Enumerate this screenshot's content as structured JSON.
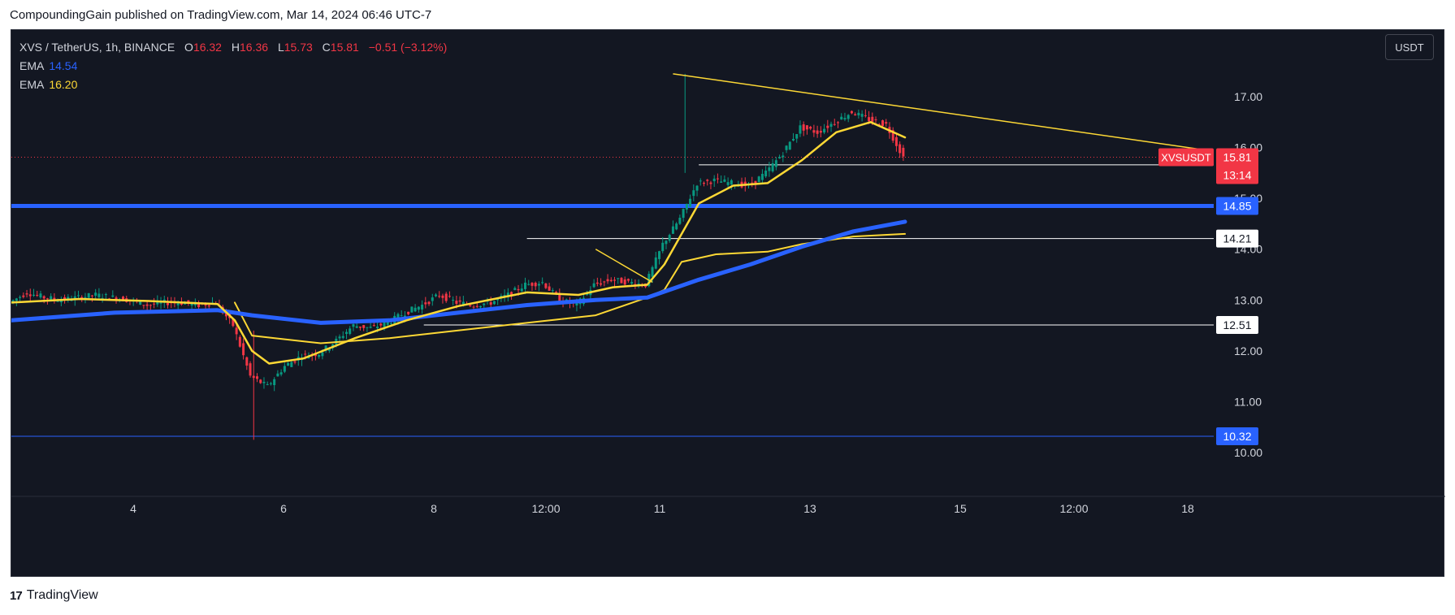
{
  "published_by": "CompoundingGain published on TradingView.com, Mar 14, 2024 06:46 UTC-7",
  "brand": "TradingView",
  "brand_mark": "17",
  "legend": {
    "symbol": "XVS / TetherUS, 1h, BINANCE",
    "o_label": "O",
    "o_val": "16.32",
    "h_label": "H",
    "h_val": "16.36",
    "l_label": "L",
    "l_val": "15.73",
    "c_label": "C",
    "c_val": "15.81",
    "change": "−0.51 (−3.12%)",
    "ema1_label": "EMA",
    "ema1_val": "14.54",
    "ema2_label": "EMA",
    "ema2_val": "16.20"
  },
  "unit_button": "USDT",
  "price_tag": {
    "symbol": "XVSUSDT",
    "price": "15.81",
    "countdown": "13:14"
  },
  "colors": {
    "background": "#131722",
    "bull": "#089981",
    "bear": "#f23645",
    "ema_fast": "#fdd835",
    "ema_slow": "#2962ff",
    "trendline": "#fdd835",
    "level_line": "#ffffff",
    "support_line": "#2962ff"
  },
  "chart_data": {
    "type": "candlestick",
    "symbol": "XVS / TetherUS",
    "timeframe": "1h",
    "exchange": "BINANCE",
    "x_ticks": [
      "4",
      "6",
      "8",
      "12:00",
      "11",
      "13",
      "15",
      "12:00",
      "18"
    ],
    "y_ticks": [
      "10.00",
      "11.00",
      "12.00",
      "13.00",
      "14.00",
      "15.00",
      "16.00",
      "17.00"
    ],
    "ylim": [
      9.0,
      17.8
    ],
    "horizontal_levels": [
      {
        "label": "15.66",
        "value": 15.66
      },
      {
        "label": "14.85",
        "value": 14.85
      },
      {
        "label": "14.21",
        "value": 14.21
      },
      {
        "label": "12.51",
        "value": 12.51
      },
      {
        "label": "10.32",
        "value": 10.32
      }
    ],
    "price_path": [
      [
        0,
        12.95
      ],
      [
        1,
        13.15
      ],
      [
        2,
        13.05
      ],
      [
        3,
        13.0
      ],
      [
        4,
        13.05
      ],
      [
        5,
        13.1
      ],
      [
        6,
        13.05
      ],
      [
        7,
        13.0
      ],
      [
        8,
        12.9
      ],
      [
        9,
        12.95
      ],
      [
        10,
        12.95
      ],
      [
        11,
        12.9
      ],
      [
        12,
        12.95
      ],
      [
        13,
        12.5
      ],
      [
        14,
        11.5
      ],
      [
        15,
        11.3
      ],
      [
        16,
        11.7
      ],
      [
        17,
        11.9
      ],
      [
        18,
        11.95
      ],
      [
        19,
        12.2
      ],
      [
        20,
        12.5
      ],
      [
        21,
        12.45
      ],
      [
        22,
        12.55
      ],
      [
        23,
        12.75
      ],
      [
        24,
        12.9
      ],
      [
        25,
        13.1
      ],
      [
        26,
        12.95
      ],
      [
        27,
        12.9
      ],
      [
        28,
        12.95
      ],
      [
        29,
        13.1
      ],
      [
        30,
        13.3
      ],
      [
        31,
        13.35
      ],
      [
        32,
        13.0
      ],
      [
        33,
        12.9
      ],
      [
        34,
        13.3
      ],
      [
        35,
        13.4
      ],
      [
        36,
        13.35
      ],
      [
        37,
        13.3
      ],
      [
        38,
        14.1
      ],
      [
        39,
        14.6
      ],
      [
        40,
        15.3
      ],
      [
        41,
        15.35
      ],
      [
        42,
        15.3
      ],
      [
        43,
        15.25
      ],
      [
        44,
        15.5
      ],
      [
        45,
        15.9
      ],
      [
        46,
        16.4
      ],
      [
        47,
        16.3
      ],
      [
        48,
        16.5
      ],
      [
        49,
        16.7
      ],
      [
        50,
        16.55
      ],
      [
        51,
        16.45
      ],
      [
        52,
        15.81
      ]
    ],
    "ema_fast": [
      [
        0,
        12.95
      ],
      [
        4,
        13.02
      ],
      [
        8,
        12.98
      ],
      [
        12,
        12.92
      ],
      [
        13,
        12.6
      ],
      [
        14,
        12.0
      ],
      [
        15,
        11.75
      ],
      [
        17,
        11.85
      ],
      [
        20,
        12.25
      ],
      [
        23,
        12.6
      ],
      [
        26,
        12.88
      ],
      [
        30,
        13.15
      ],
      [
        33,
        13.1
      ],
      [
        35,
        13.25
      ],
      [
        37,
        13.3
      ],
      [
        38,
        13.7
      ],
      [
        40,
        14.9
      ],
      [
        42,
        15.25
      ],
      [
        44,
        15.3
      ],
      [
        46,
        15.75
      ],
      [
        48,
        16.3
      ],
      [
        50,
        16.5
      ],
      [
        52,
        16.2
      ]
    ],
    "ema_slow": [
      [
        0,
        12.6
      ],
      [
        6,
        12.75
      ],
      [
        12,
        12.8
      ],
      [
        14,
        12.7
      ],
      [
        18,
        12.55
      ],
      [
        22,
        12.6
      ],
      [
        26,
        12.75
      ],
      [
        30,
        12.9
      ],
      [
        34,
        13.0
      ],
      [
        37,
        13.05
      ],
      [
        40,
        13.4
      ],
      [
        43,
        13.7
      ],
      [
        46,
        14.05
      ],
      [
        49,
        14.35
      ],
      [
        52,
        14.54
      ]
    ],
    "vwap_like": [
      [
        13,
        12.95
      ],
      [
        14,
        12.3
      ],
      [
        18,
        12.15
      ],
      [
        22,
        12.25
      ],
      [
        26,
        12.4
      ],
      [
        30,
        12.55
      ],
      [
        34,
        12.7
      ],
      [
        37,
        13.05
      ],
      [
        38,
        13.2
      ],
      [
        39,
        13.75
      ],
      [
        41,
        13.9
      ],
      [
        44,
        13.95
      ],
      [
        46,
        14.1
      ],
      [
        49,
        14.25
      ],
      [
        52,
        14.3
      ]
    ],
    "trendlines": [
      {
        "from": [
          38.5,
          17.45
        ],
        "to": [
          69.5,
          15.95
        ]
      },
      {
        "from": [
          34,
          14.0
        ],
        "to": [
          37.3,
          13.35
        ]
      }
    ]
  }
}
